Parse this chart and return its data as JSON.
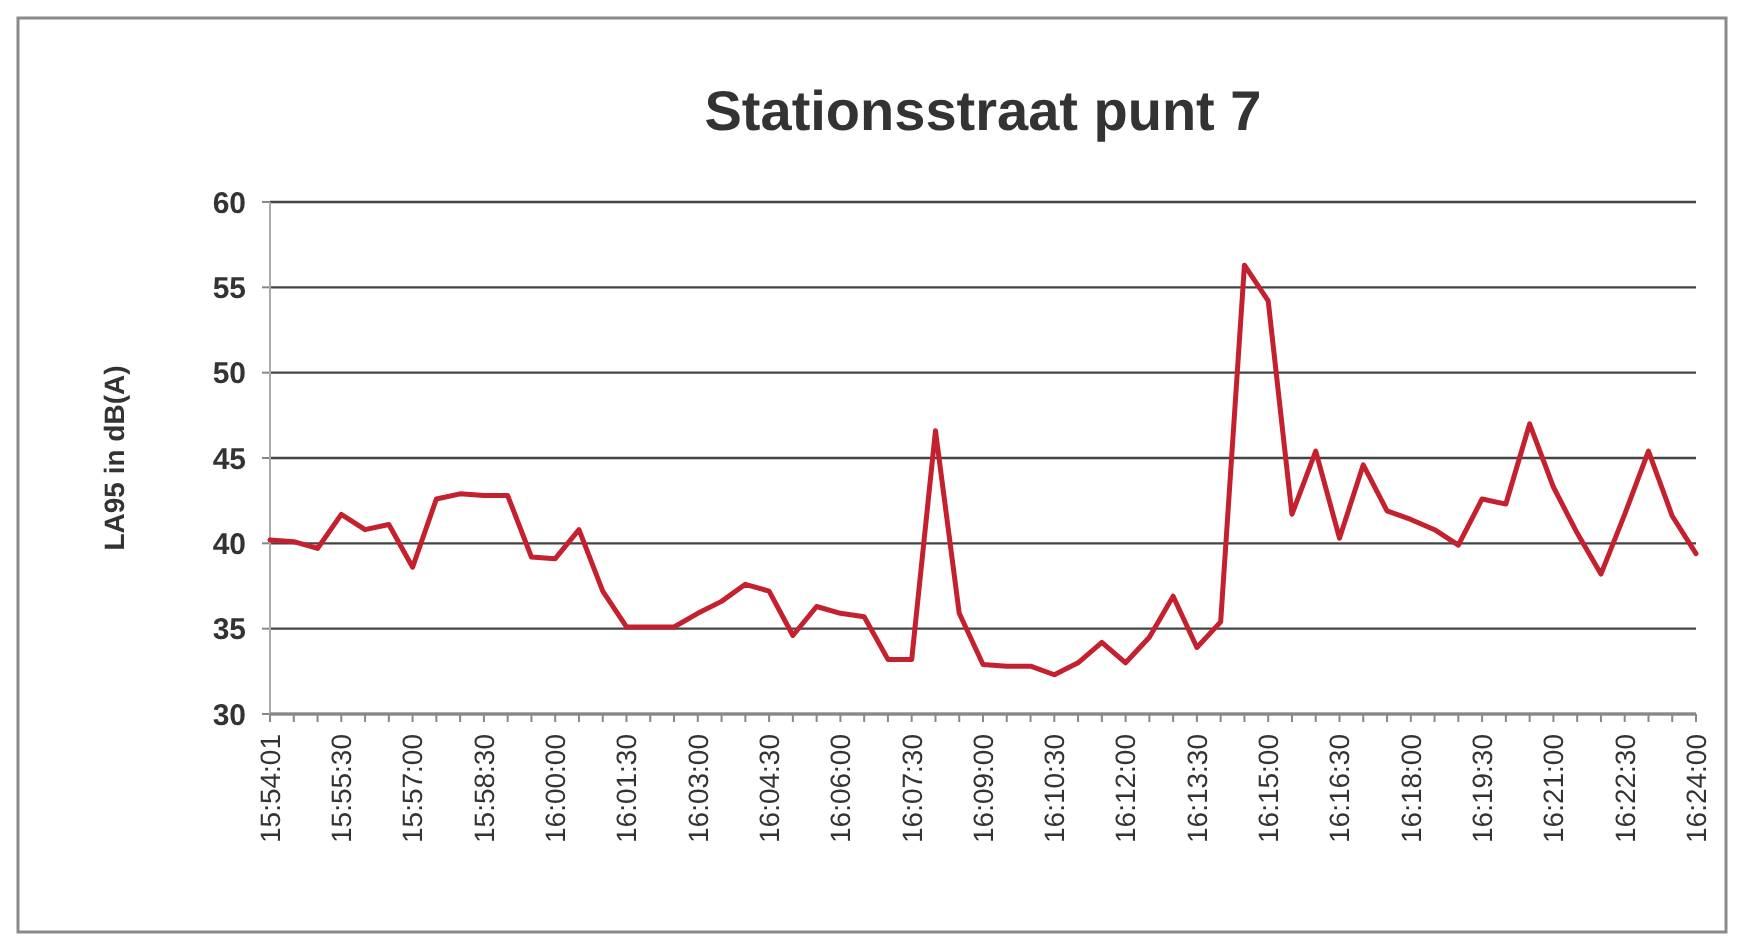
{
  "chart_data": {
    "type": "line",
    "title": "Stationsstraat punt 7",
    "ylabel": "LA95 in dB(A)",
    "categories": [
      "15:54:01",
      null,
      null,
      "15:55:30",
      null,
      null,
      "15:57:00",
      null,
      null,
      "15:58:30",
      null,
      null,
      "16:00:00",
      null,
      null,
      "16:01:30",
      null,
      null,
      "16:03:00",
      null,
      null,
      "16:04:30",
      null,
      null,
      "16:06:00",
      null,
      null,
      "16:07:30",
      null,
      null,
      "16:09:00",
      null,
      null,
      "16:10:30",
      null,
      null,
      "16:12:00",
      null,
      null,
      "16:13:30",
      null,
      null,
      "16:15:00",
      null,
      null,
      "16:16:30",
      null,
      null,
      "16:18:00",
      null,
      null,
      "16:19:30",
      null,
      null,
      "16:21:00",
      null,
      null,
      "16:22:30",
      null,
      null,
      "16:24:00"
    ],
    "series": [
      {
        "color": "#c4202e",
        "values": [
          40.2,
          40.1,
          39.7,
          41.7,
          40.8,
          41.1,
          38.6,
          42.6,
          42.9,
          42.8,
          42.8,
          39.2,
          39.1,
          40.8,
          37.2,
          35.1,
          35.1,
          35.1,
          35.9,
          36.6,
          37.6,
          37.2,
          34.6,
          36.3,
          35.9,
          35.7,
          33.2,
          33.2,
          46.6,
          35.9,
          32.9,
          32.8,
          32.8,
          32.3,
          33.0,
          34.2,
          33.0,
          34.5,
          36.9,
          33.9,
          35.4,
          56.3,
          54.2,
          41.7,
          45.4,
          40.3,
          44.6,
          41.9,
          41.4,
          40.8,
          39.9,
          42.6,
          42.3,
          47.0,
          43.3,
          40.6,
          38.2,
          41.7,
          45.4,
          41.6,
          39.4
        ]
      }
    ],
    "ylim": [
      30,
      60
    ],
    "yticks": [
      30,
      35,
      40,
      45,
      50,
      55,
      60
    ],
    "grid": "y",
    "marker": "none",
    "line_style": "solid"
  }
}
